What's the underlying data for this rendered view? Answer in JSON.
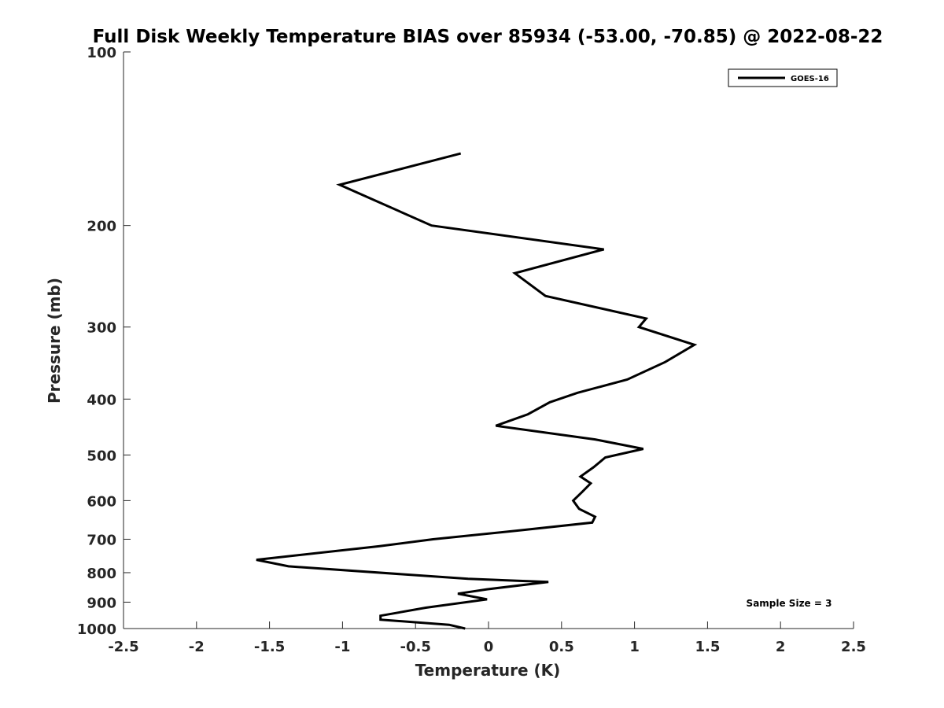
{
  "chart_data": {
    "type": "line",
    "title": "Full Disk Weekly Temperature BIAS over 85934 (-53.00, -70.85) @ 2022-08-22",
    "xlabel": "Temperature (K)",
    "ylabel": "Pressure (mb)",
    "xlim": [
      -2.5,
      2.5
    ],
    "ylim": [
      100,
      1000
    ],
    "yscale": "log",
    "y_reversed": true,
    "grid": false,
    "xticks": [
      -2.5,
      -2,
      -1.5,
      -1,
      -0.5,
      0,
      0.5,
      1,
      1.5,
      2,
      2.5
    ],
    "xtick_labels": [
      "-2.5",
      "-2",
      "-1.5",
      "-1",
      "-0.5",
      "0",
      "0.5",
      "1",
      "1.5",
      "2",
      "2.5"
    ],
    "yticks": [
      100,
      200,
      300,
      400,
      500,
      600,
      700,
      800,
      900,
      1000
    ],
    "ytick_labels": [
      "100",
      "200",
      "300",
      "400",
      "500",
      "600",
      "700",
      "800",
      "900",
      "1000"
    ],
    "legend_position": "top-right",
    "series": [
      {
        "name": "GOES-16",
        "color": "#000000",
        "points": [
          [
            -0.19,
            150
          ],
          [
            -1.02,
            170
          ],
          [
            -0.39,
            200
          ],
          [
            0.79,
            220
          ],
          [
            0.18,
            242
          ],
          [
            0.39,
            265
          ],
          [
            1.08,
            290
          ],
          [
            1.03,
            300
          ],
          [
            1.41,
            322
          ],
          [
            1.21,
            345
          ],
          [
            0.95,
            370
          ],
          [
            0.61,
            390
          ],
          [
            0.42,
            405
          ],
          [
            0.27,
            425
          ],
          [
            0.05,
            445
          ],
          [
            0.73,
            470
          ],
          [
            1.06,
            488
          ],
          [
            0.8,
            505
          ],
          [
            0.72,
            525
          ],
          [
            0.63,
            545
          ],
          [
            0.7,
            560
          ],
          [
            0.64,
            580
          ],
          [
            0.58,
            600
          ],
          [
            0.62,
            620
          ],
          [
            0.73,
            640
          ],
          [
            0.71,
            655
          ],
          [
            0.23,
            675
          ],
          [
            -0.38,
            700
          ],
          [
            -0.75,
            720
          ],
          [
            -1.59,
            760
          ],
          [
            -1.37,
            780
          ],
          [
            -0.14,
            820
          ],
          [
            0.41,
            830
          ],
          [
            -0.01,
            855
          ],
          [
            -0.21,
            870
          ],
          [
            -0.01,
            890
          ],
          [
            -0.43,
            920
          ],
          [
            -0.74,
            950
          ],
          [
            -0.74,
            965
          ],
          [
            -0.27,
            985
          ],
          [
            -0.16,
            1000
          ]
        ]
      }
    ],
    "annotation": "Sample Size = 3"
  }
}
